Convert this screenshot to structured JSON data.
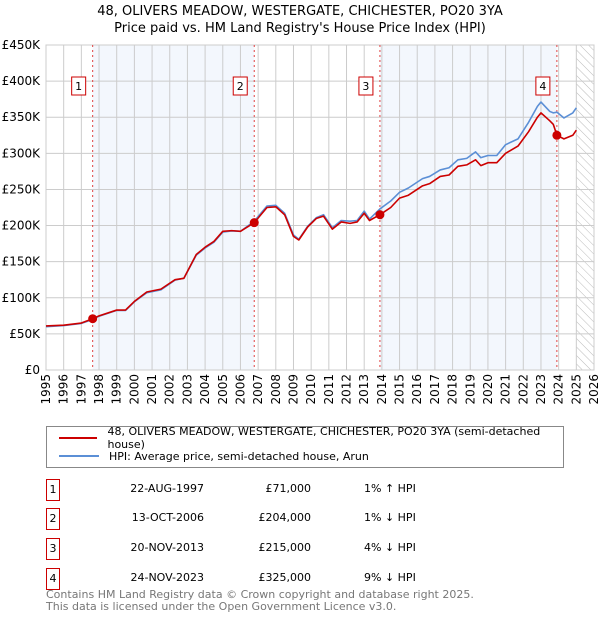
{
  "title_line1": "48, OLIVERS MEADOW, WESTERGATE, CHICHESTER, PO20 3YA",
  "title_line2": "Price paid vs. HM Land Registry's House Price Index (HPI)",
  "chart_data": {
    "type": "line",
    "title": "Price paid vs. HM Land Registry's House Price Index (HPI)",
    "xlim": [
      1995,
      2026
    ],
    "ylim": [
      0,
      450000
    ],
    "x_ticks": [
      "1995",
      "1996",
      "1997",
      "1998",
      "1999",
      "2000",
      "2001",
      "2002",
      "2003",
      "2004",
      "2005",
      "2006",
      "2007",
      "2008",
      "2009",
      "2010",
      "2011",
      "2012",
      "2013",
      "2014",
      "2015",
      "2016",
      "2017",
      "2018",
      "2019",
      "2020",
      "2021",
      "2022",
      "2023",
      "2024",
      "2025",
      "2026"
    ],
    "y_ticks": [
      {
        "v": 0,
        "label": "£0"
      },
      {
        "v": 50000,
        "label": "£50K"
      },
      {
        "v": 100000,
        "label": "£100K"
      },
      {
        "v": 150000,
        "label": "£150K"
      },
      {
        "v": 200000,
        "label": "£200K"
      },
      {
        "v": 250000,
        "label": "£250K"
      },
      {
        "v": 300000,
        "label": "£300K"
      },
      {
        "v": 350000,
        "label": "£350K"
      },
      {
        "v": 400000,
        "label": "£400K"
      },
      {
        "v": 450000,
        "label": "£450K"
      }
    ],
    "grid": true,
    "future_hatch_from": 2025.0,
    "series": [
      {
        "name": "48, OLIVERS MEADOW, WESTERGATE, CHICHESTER, PO20 3YA (semi-detached house)",
        "color": "#cc0000",
        "x": [
          1995,
          1996,
          1997,
          1997.64,
          1998,
          1999,
          1999.5,
          2000,
          2000.7,
          2001.5,
          2002.3,
          2002.8,
          2003.5,
          2004,
          2004.5,
          2005,
          2005.5,
          2006,
          2006.78,
          2007.5,
          2008,
          2008.5,
          2009,
          2009.3,
          2009.8,
          2010.3,
          2010.7,
          2011.2,
          2011.7,
          2012.2,
          2012.6,
          2013,
          2013.3,
          2013.89,
          2014.5,
          2015,
          2015.5,
          2016.3,
          2016.7,
          2017.3,
          2017.8,
          2018.3,
          2018.8,
          2019.3,
          2019.6,
          2020,
          2020.5,
          2021,
          2021.7,
          2022.3,
          2022.8,
          2023.0,
          2023.5,
          2023.7,
          2023.9,
          2024.3,
          2024.8,
          2025.0
        ],
        "y": [
          61000,
          62000,
          65000,
          71000,
          75000,
          83000,
          83000,
          95000,
          108000,
          112000,
          125000,
          127000,
          160000,
          170000,
          178000,
          192000,
          193000,
          192000,
          204000,
          225000,
          226000,
          215000,
          185000,
          180000,
          198000,
          210000,
          213000,
          195000,
          205000,
          203000,
          205000,
          217000,
          207000,
          215000,
          225000,
          238000,
          242000,
          255000,
          258000,
          268000,
          270000,
          282000,
          284000,
          291000,
          283000,
          287000,
          287000,
          300000,
          310000,
          330000,
          350000,
          356000,
          345000,
          340000,
          325000,
          320000,
          325000,
          332000
        ]
      },
      {
        "name": "HPI: Average price, semi-detached house, Arun",
        "color": "#5b8fd6",
        "x": [
          1995,
          1996,
          1997,
          1997.64,
          1998,
          1999,
          1999.5,
          2000,
          2000.7,
          2001.5,
          2002.3,
          2002.8,
          2003.5,
          2004,
          2004.5,
          2005,
          2005.5,
          2006,
          2006.78,
          2007.5,
          2008,
          2008.5,
          2009,
          2009.3,
          2009.8,
          2010.3,
          2010.7,
          2011.2,
          2011.7,
          2012.2,
          2012.6,
          2013,
          2013.3,
          2013.89,
          2014.5,
          2015,
          2015.5,
          2016.3,
          2016.7,
          2017.3,
          2017.8,
          2018.3,
          2018.8,
          2019.3,
          2019.6,
          2020,
          2020.5,
          2021,
          2021.7,
          2022.3,
          2022.8,
          2023.0,
          2023.5,
          2023.7,
          2023.9,
          2024.3,
          2024.8,
          2025.0
        ],
        "y": [
          60000,
          61500,
          64500,
          70000,
          74500,
          82500,
          82500,
          94500,
          107000,
          111000,
          124500,
          127000,
          159000,
          169000,
          177000,
          191000,
          192500,
          192000,
          206000,
          227000,
          228000,
          217000,
          187000,
          181000,
          199000,
          211000,
          215000,
          197000,
          207000,
          206000,
          207000,
          220000,
          209000,
          223000,
          234000,
          246000,
          252000,
          265000,
          268000,
          277000,
          280000,
          291000,
          293000,
          302000,
          294000,
          297000,
          297000,
          312000,
          320000,
          343000,
          365000,
          371000,
          358000,
          356000,
          357000,
          349000,
          356000,
          363000
        ]
      }
    ],
    "sales": [
      {
        "id": "1",
        "x": 1997.64,
        "price": 71000
      },
      {
        "id": "2",
        "x": 2006.78,
        "price": 204000
      },
      {
        "id": "3",
        "x": 2013.89,
        "price": 215000
      },
      {
        "id": "4",
        "x": 2023.9,
        "price": 325000
      }
    ]
  },
  "legend": [
    {
      "label": "48, OLIVERS MEADOW, WESTERGATE, CHICHESTER, PO20 3YA (semi-detached house)",
      "color": "#cc0000"
    },
    {
      "label": "HPI: Average price, semi-detached house, Arun",
      "color": "#5b8fd6"
    }
  ],
  "transactions": [
    {
      "num": "1",
      "date": "22-AUG-1997",
      "price": "£71,000",
      "hpi": "1% ↑ HPI"
    },
    {
      "num": "2",
      "date": "13-OCT-2006",
      "price": "£204,000",
      "hpi": "1% ↓ HPI"
    },
    {
      "num": "3",
      "date": "20-NOV-2013",
      "price": "£215,000",
      "hpi": "4% ↓ HPI"
    },
    {
      "num": "4",
      "date": "24-NOV-2023",
      "price": "£325,000",
      "hpi": "9% ↓ HPI"
    }
  ],
  "footer_line1": "Contains HM Land Registry data © Crown copyright and database right 2025.",
  "footer_line2": "This data is licensed under the Open Government Licence v3.0."
}
